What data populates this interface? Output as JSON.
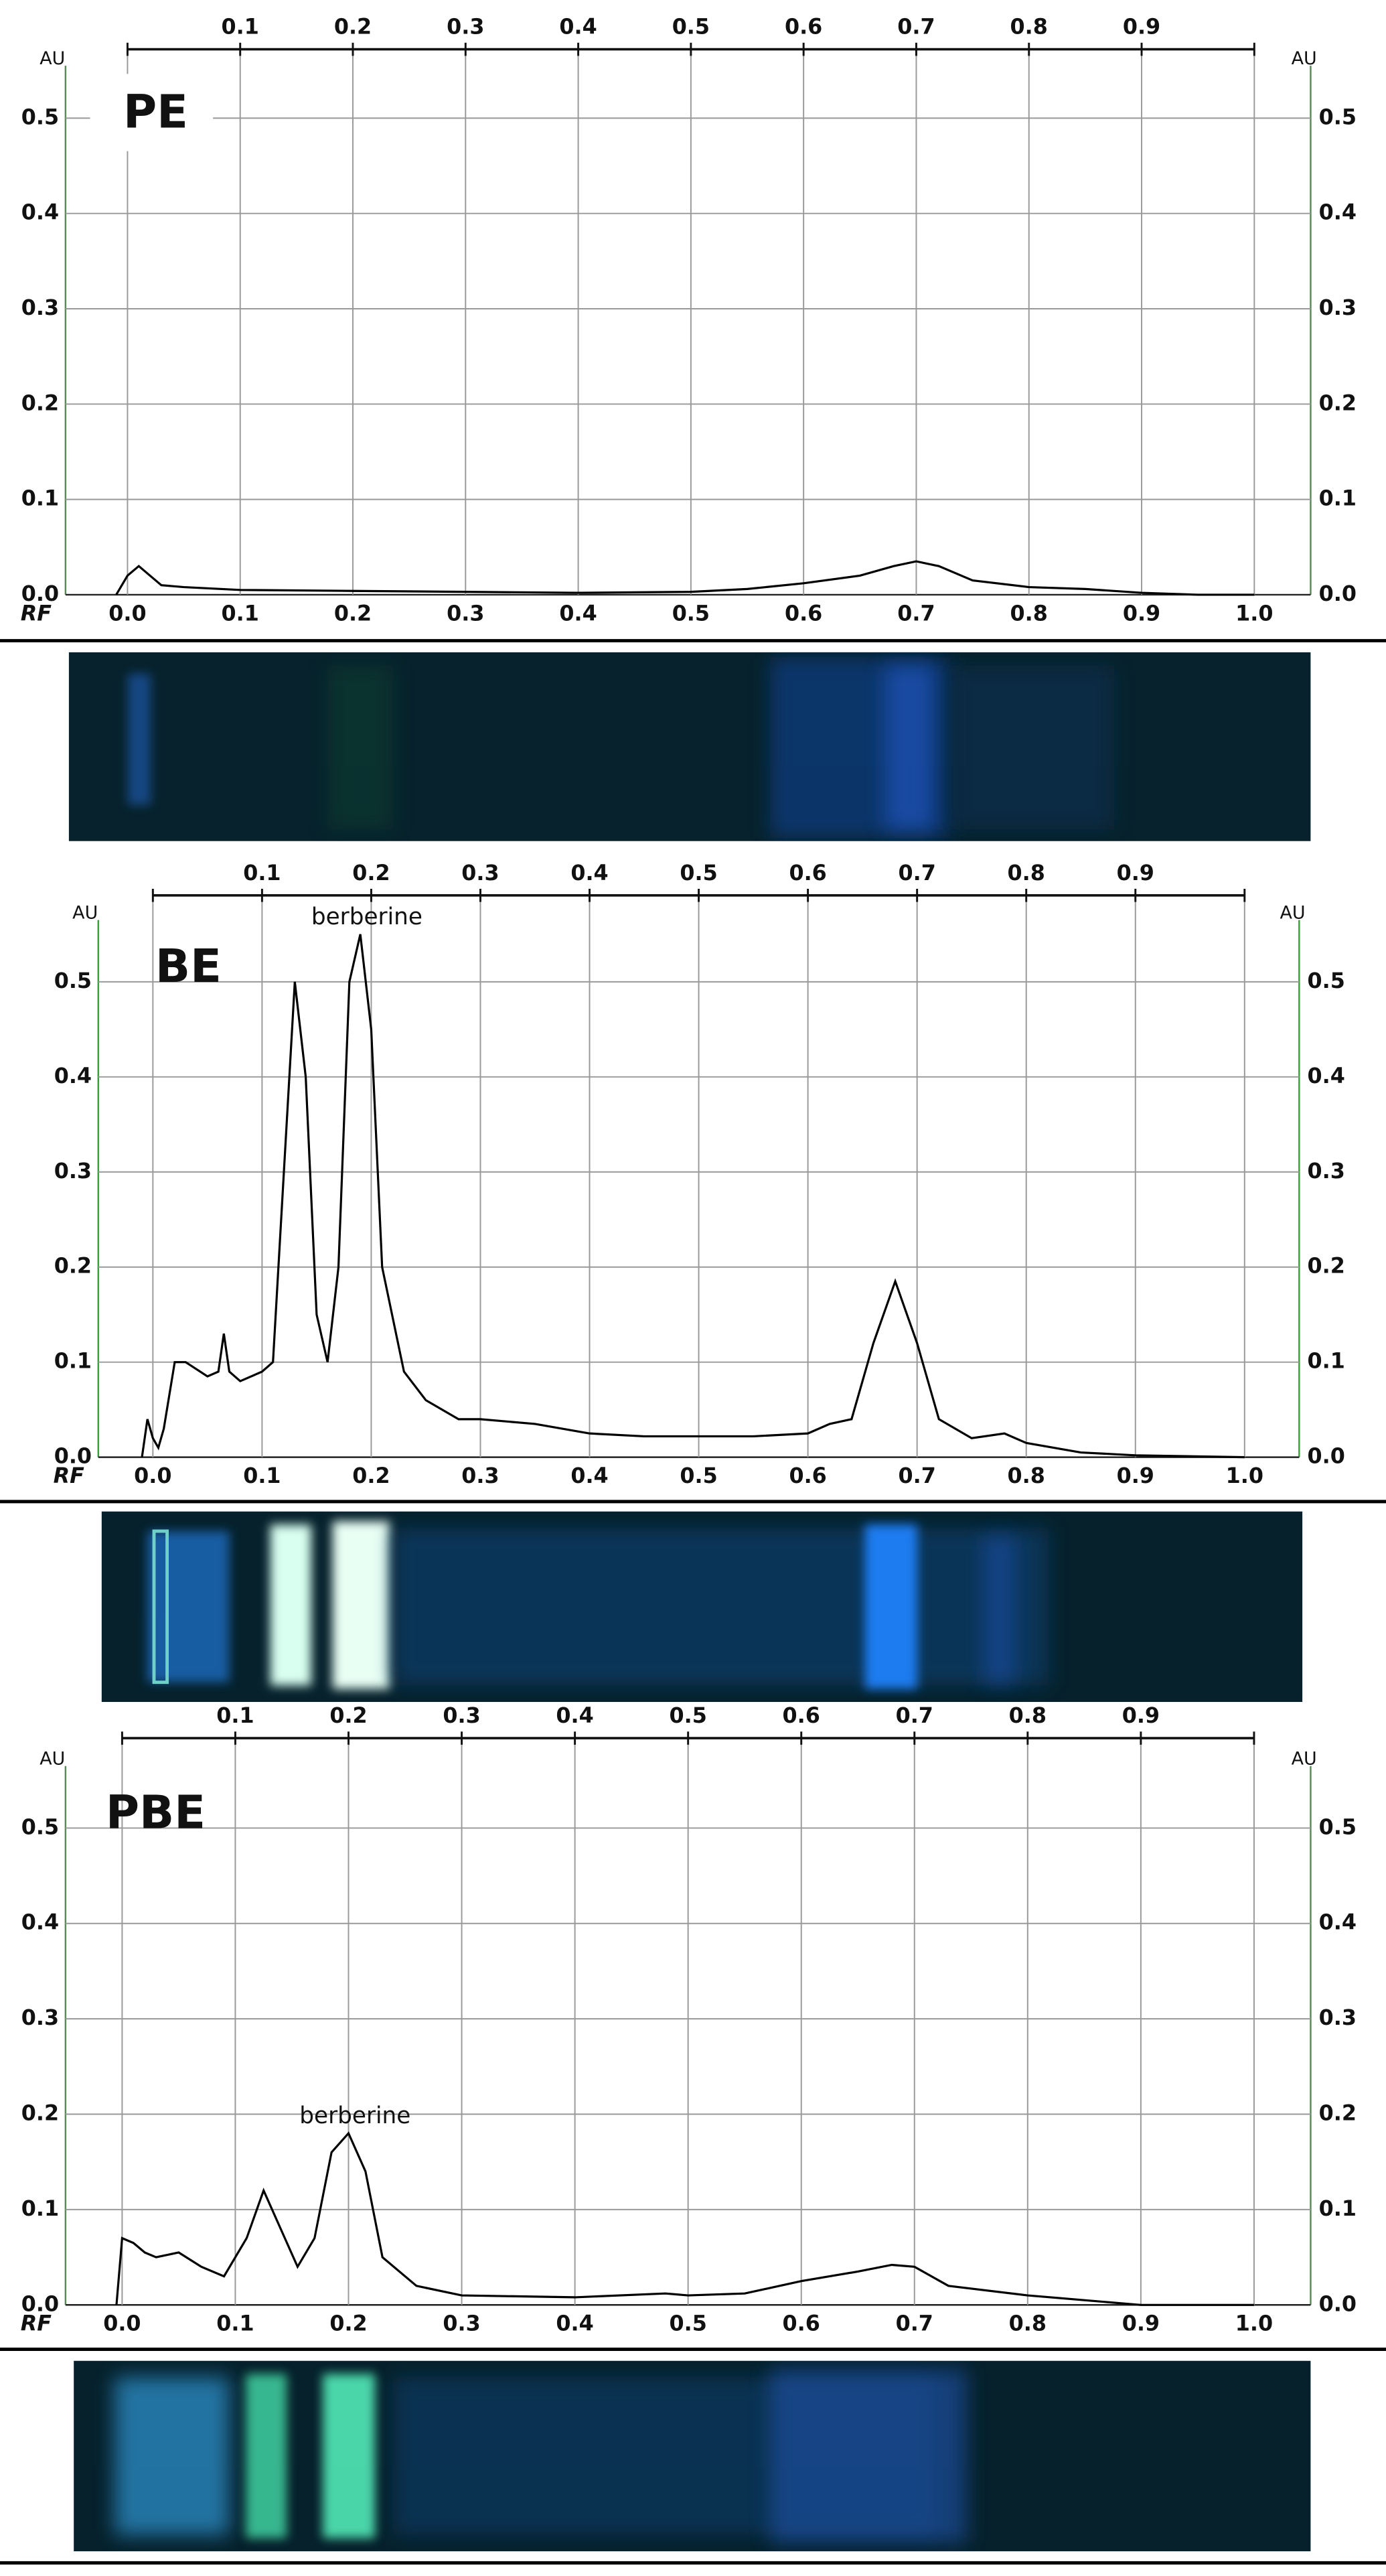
{
  "chart_data": [
    {
      "type": "line",
      "title": "PE",
      "y_label": "AU",
      "x_label": "RF",
      "xlim": [
        -0.055,
        1.05
      ],
      "ylim": [
        0,
        0.555
      ],
      "xticks": [
        {
          "value": 0,
          "label": "0.0"
        },
        0.1,
        0.2,
        0.3,
        0.4,
        0.5,
        0.6,
        0.7,
        0.8,
        0.9,
        {
          "value": 1,
          "label": "1.0"
        }
      ],
      "yticks": [
        {
          "value": 0,
          "label": "0.0"
        },
        0.1,
        0.2,
        0.3,
        0.4,
        0.5
      ],
      "grid": true,
      "color": "#000000",
      "x": [
        -0.01,
        0.0,
        0.01,
        0.02,
        0.03,
        0.05,
        0.1,
        0.2,
        0.3,
        0.4,
        0.5,
        0.55,
        0.6,
        0.65,
        0.68,
        0.7,
        0.72,
        0.75,
        0.8,
        0.85,
        0.9,
        0.95,
        1.0
      ],
      "values": [
        0.0,
        0.02,
        0.03,
        0.02,
        0.01,
        0.008,
        0.005,
        0.004,
        0.003,
        0.002,
        0.003,
        0.006,
        0.012,
        0.02,
        0.03,
        0.035,
        0.03,
        0.015,
        0.008,
        0.006,
        0.002,
        0.0,
        0.0
      ]
    },
    {
      "type": "line",
      "title": "BE",
      "y_label": "AU",
      "x_label": "RF",
      "xlim": [
        -0.05,
        1.05
      ],
      "ylim": [
        0,
        0.565
      ],
      "xticks": [
        {
          "value": 0,
          "label": "0.0"
        },
        0.1,
        0.2,
        0.3,
        0.4,
        0.5,
        0.6,
        0.7,
        0.8,
        0.9,
        {
          "value": 1,
          "label": "1.0"
        }
      ],
      "yticks": [
        {
          "value": 0,
          "label": "0.0"
        },
        0.1,
        0.2,
        0.3,
        0.4,
        0.5
      ],
      "grid": true,
      "color": "#000000",
      "annotations": [
        {
          "text": "berberine",
          "x": 0.19,
          "y": 0.55
        }
      ],
      "x": [
        -0.01,
        -0.005,
        0.0,
        0.005,
        0.01,
        0.02,
        0.03,
        0.05,
        0.06,
        0.065,
        0.07,
        0.08,
        0.1,
        0.11,
        0.12,
        0.13,
        0.14,
        0.15,
        0.16,
        0.17,
        0.18,
        0.19,
        0.2,
        0.21,
        0.23,
        0.25,
        0.28,
        0.3,
        0.35,
        0.4,
        0.45,
        0.5,
        0.55,
        0.6,
        0.62,
        0.64,
        0.66,
        0.68,
        0.7,
        0.72,
        0.75,
        0.78,
        0.8,
        0.85,
        0.9,
        1.0
      ],
      "values": [
        0.0,
        0.04,
        0.02,
        0.01,
        0.03,
        0.1,
        0.1,
        0.085,
        0.09,
        0.13,
        0.09,
        0.08,
        0.09,
        0.1,
        0.3,
        0.5,
        0.4,
        0.15,
        0.1,
        0.2,
        0.5,
        0.55,
        0.45,
        0.2,
        0.09,
        0.06,
        0.04,
        0.04,
        0.035,
        0.025,
        0.022,
        0.022,
        0.022,
        0.025,
        0.035,
        0.04,
        0.12,
        0.185,
        0.12,
        0.04,
        0.02,
        0.025,
        0.015,
        0.005,
        0.002,
        0.0
      ]
    },
    {
      "type": "line",
      "title": "PBE",
      "y_label": "AU",
      "x_label": "RF",
      "xlim": [
        -0.05,
        1.05
      ],
      "ylim": [
        0,
        0.565
      ],
      "xticks": [
        {
          "value": 0,
          "label": "0.0"
        },
        0.1,
        0.2,
        0.3,
        0.4,
        0.5,
        0.6,
        0.7,
        0.8,
        0.9,
        {
          "value": 1,
          "label": "1.0"
        }
      ],
      "yticks": [
        {
          "value": 0,
          "label": "0.0"
        },
        0.1,
        0.2,
        0.3,
        0.4,
        0.5
      ],
      "grid": true,
      "color": "#000000",
      "annotations": [
        {
          "text": "berberine",
          "x": 0.2,
          "y": 0.18
        }
      ],
      "x": [
        -0.005,
        0.0,
        0.01,
        0.02,
        0.03,
        0.05,
        0.07,
        0.09,
        0.11,
        0.125,
        0.14,
        0.155,
        0.17,
        0.185,
        0.2,
        0.215,
        0.23,
        0.26,
        0.3,
        0.4,
        0.48,
        0.5,
        0.55,
        0.6,
        0.65,
        0.68,
        0.7,
        0.73,
        0.8,
        0.85,
        0.9,
        1.0
      ],
      "values": [
        0.0,
        0.07,
        0.065,
        0.055,
        0.05,
        0.055,
        0.04,
        0.03,
        0.07,
        0.12,
        0.08,
        0.04,
        0.07,
        0.16,
        0.18,
        0.14,
        0.05,
        0.02,
        0.01,
        0.008,
        0.012,
        0.01,
        0.012,
        0.025,
        0.035,
        0.042,
        0.04,
        0.02,
        0.01,
        0.005,
        0.0,
        0.0
      ]
    }
  ]
}
